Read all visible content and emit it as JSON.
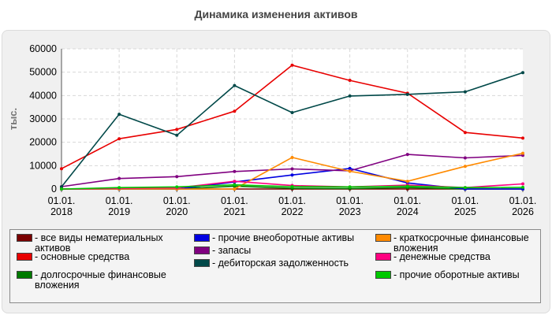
{
  "chart_data": {
    "type": "line",
    "title": "Динамика изменения активов",
    "ylabel": "тыс.",
    "xlabel": "",
    "ylim": [
      0,
      60000
    ],
    "yticks": [
      0,
      10000,
      20000,
      30000,
      40000,
      50000,
      60000
    ],
    "ytick_labels": [
      "0",
      "10000",
      "20000",
      "30000",
      "40000",
      "50000",
      "60000"
    ],
    "categories": [
      [
        "01.01.",
        "2018"
      ],
      [
        "01.01.",
        "2019"
      ],
      [
        "01.01.",
        "2020"
      ],
      [
        "01.01.",
        "2021"
      ],
      [
        "01.01.",
        "2022"
      ],
      [
        "01.01.",
        "2023"
      ],
      [
        "01.01.",
        "2024"
      ],
      [
        "01.01.",
        "2025"
      ],
      [
        "01.01.",
        "2026"
      ]
    ],
    "grid": true,
    "legend_position": "bottom",
    "series": [
      {
        "name": "все виды нематериальных активов",
        "color": "#7a0000",
        "values": [
          0,
          0,
          0,
          0,
          0,
          0,
          0,
          0,
          0
        ]
      },
      {
        "name": "основные средства",
        "color": "#e80000",
        "values": [
          8700,
          21500,
          25500,
          33300,
          53000,
          46500,
          41000,
          24200,
          21800
        ]
      },
      {
        "name": "долгосрочные финансовые вложения",
        "color": "#007a00",
        "values": [
          0,
          0,
          0,
          1200,
          300,
          200,
          600,
          0,
          0
        ]
      },
      {
        "name": "прочие внеоборотные активы",
        "color": "#0000e0",
        "values": [
          0,
          0,
          0,
          3000,
          6000,
          8800,
          2600,
          0,
          0
        ]
      },
      {
        "name": "запасы",
        "color": "#800080",
        "values": [
          1000,
          4500,
          5300,
          7500,
          8600,
          7800,
          14800,
          13300,
          14400
        ]
      },
      {
        "name": "дебиторская задолженность",
        "color": "#004848",
        "values": [
          900,
          32000,
          23000,
          44300,
          32700,
          39800,
          40500,
          41600,
          49800
        ]
      },
      {
        "name": "краткосрочные финансовые вложения",
        "color": "#ff8a00",
        "values": [
          0,
          0,
          0,
          0,
          13500,
          7600,
          3300,
          9700,
          15300
        ]
      },
      {
        "name": "денежные средства",
        "color": "#ff0080",
        "values": [
          0,
          300,
          500,
          3300,
          1500,
          900,
          1700,
          600,
          2200
        ]
      },
      {
        "name": "прочие оборотные активы",
        "color": "#00c800",
        "values": [
          0,
          600,
          900,
          1800,
          1000,
          900,
          1200,
          600,
          700
        ]
      }
    ]
  }
}
